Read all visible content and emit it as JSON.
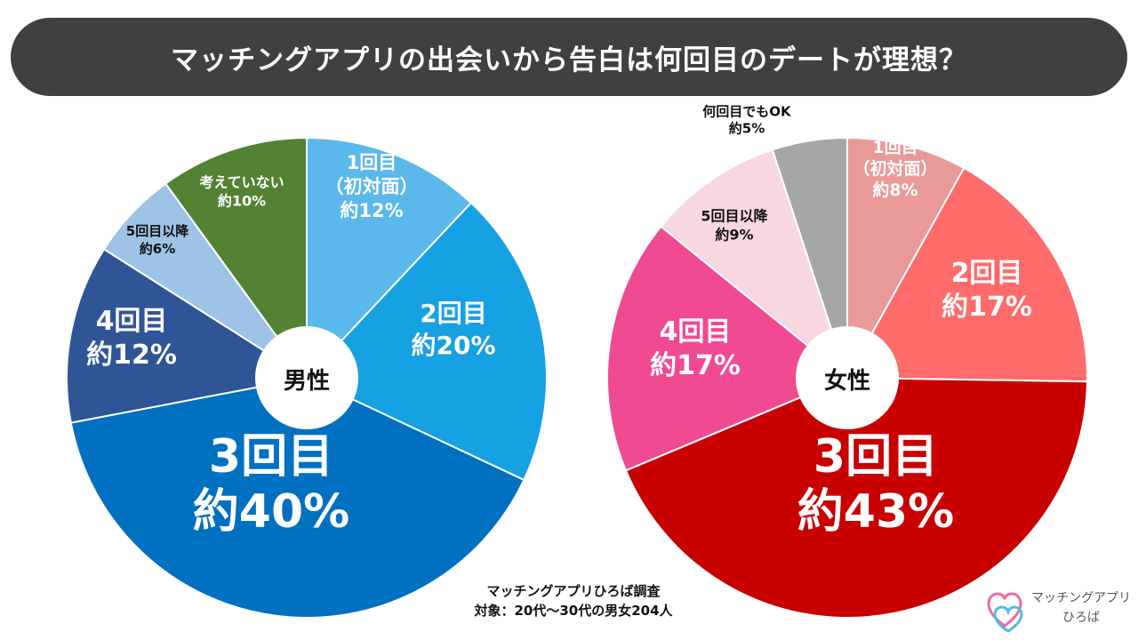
{
  "title": "マッチングアプリの出会いから告白は何回目のデートが理想？",
  "source": {
    "line1": "マッチングアプリひろば調査",
    "line2": "対象：20代〜30代の男女204人"
  },
  "logo": {
    "line1": "マッチングアプリ",
    "line2": "ひろば",
    "icon": "double-heart-icon",
    "colors": [
      "#f06a9a",
      "#55b7e6"
    ]
  },
  "chart_data": [
    {
      "type": "pie",
      "center_label": "男性",
      "slices": [
        {
          "label": [
            "1回目",
            "（初対面）"
          ],
          "value_label": "約12%",
          "value": 12,
          "color": "#5bb8eb"
        },
        {
          "label": [
            "2回目"
          ],
          "value_label": "約20%",
          "value": 20,
          "color": "#16a1e3"
        },
        {
          "label": [
            "3回目"
          ],
          "value_label": "約40%",
          "value": 40,
          "color": "#0070c0"
        },
        {
          "label": [
            "4回目"
          ],
          "value_label": "約12%",
          "value": 12,
          "color": "#2f5597"
        },
        {
          "label": [
            "5回目以降"
          ],
          "value_label": "約6%",
          "value": 6,
          "color": "#9dc3e6"
        },
        {
          "label": [
            "考えていない"
          ],
          "value_label": "約10%",
          "value": 10,
          "color": "#548235"
        }
      ]
    },
    {
      "type": "pie",
      "center_label": "女性",
      "slices": [
        {
          "label": [
            "1回目",
            "（初対面）"
          ],
          "value_label": "約8%",
          "value": 8,
          "color": "#ea9999"
        },
        {
          "label": [
            "2回目"
          ],
          "value_label": "約17%",
          "value": 17,
          "color": "#ff6b6b"
        },
        {
          "label": [
            "3回目"
          ],
          "value_label": "約43%",
          "value": 43,
          "color": "#c80000"
        },
        {
          "label": [
            "4回目"
          ],
          "value_label": "約17%",
          "value": 17,
          "color": "#f04a92"
        },
        {
          "label": [
            "5回目以降"
          ],
          "value_label": "約9%",
          "value": 9,
          "color": "#f7d7e0"
        },
        {
          "label": [
            "何回目でもOK"
          ],
          "value_label": "約5%",
          "value": 5,
          "color": "#a6a6a6"
        }
      ]
    }
  ]
}
